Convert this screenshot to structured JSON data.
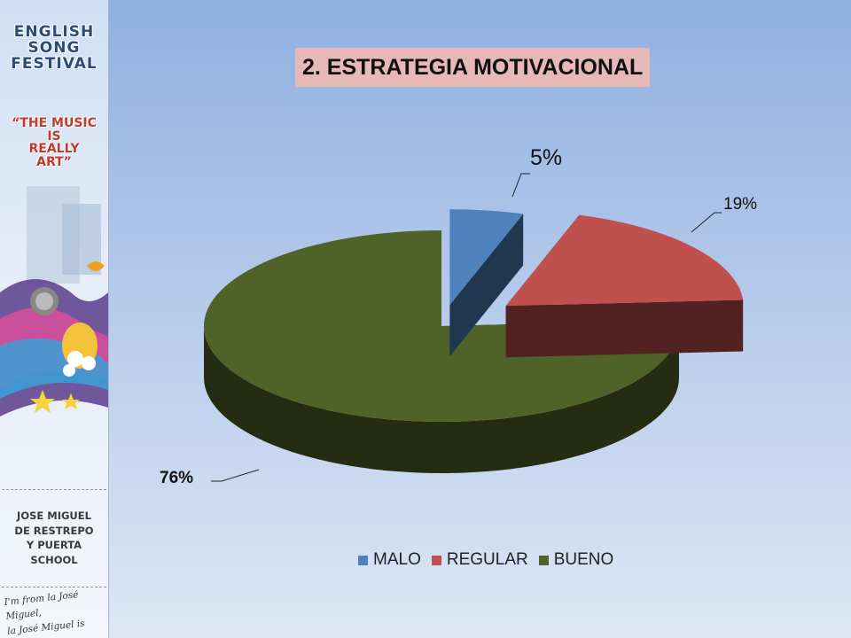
{
  "sidebar": {
    "festival_line1": "ENGLISH",
    "festival_line2": "SONG",
    "festival_line3": "FESTIVAL",
    "slogan_line1": "“THE MUSIC",
    "slogan_line2": "IS",
    "slogan_line3": "REALLY",
    "slogan_line4": "ART”",
    "school_line1": "JOSE MIGUEL",
    "school_line2": "DE RESTREPO",
    "school_line3": "Y PUERTA",
    "school_line4": "SCHOOL",
    "motto_line1": "I'm from la José Miguel,",
    "motto_line2": "la José Miguel is Mine!"
  },
  "chart_data": {
    "type": "pie",
    "title": "2. ESTRATEGIA MOTIVACIONAL",
    "categories": [
      "MALO",
      "REGULAR",
      "BUENO"
    ],
    "values": [
      5,
      19,
      76
    ],
    "data_labels": [
      "5%",
      "19%",
      "76%"
    ],
    "colors": [
      "#4f81bd",
      "#c0504d",
      "#4f6228"
    ],
    "legend_position": "bottom",
    "exploded": true,
    "three_d": true
  }
}
